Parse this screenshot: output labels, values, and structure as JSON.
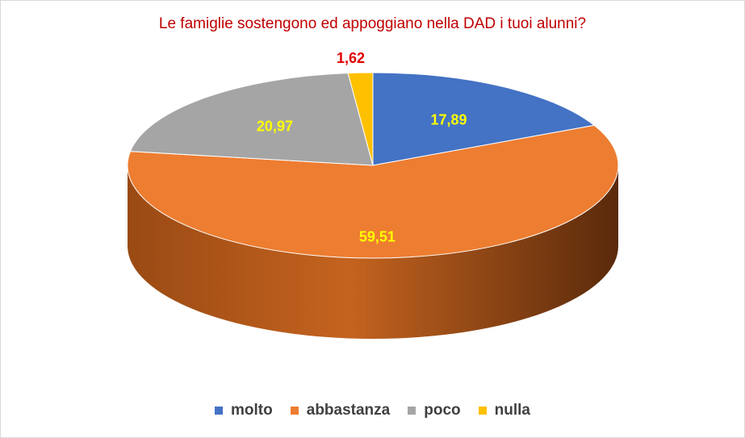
{
  "chart_data": {
    "type": "pie",
    "title": "Le famiglie sostengono ed appoggiano nella DAD i tuoi alunni?",
    "categories": [
      "molto",
      "abbastanza",
      "poco",
      "nulla"
    ],
    "values": [
      17.89,
      59.51,
      20.97,
      1.62
    ],
    "value_labels": [
      "17,89",
      "59,51",
      "20,97",
      "1,62"
    ],
    "colors": [
      "#4472c4",
      "#ed7d31",
      "#a5a5a5",
      "#ffc000"
    ],
    "label_colors": [
      "#ffff00",
      "#ffff00",
      "#ffff00",
      "#e00000"
    ],
    "style": "3d",
    "legend_position": "bottom"
  }
}
